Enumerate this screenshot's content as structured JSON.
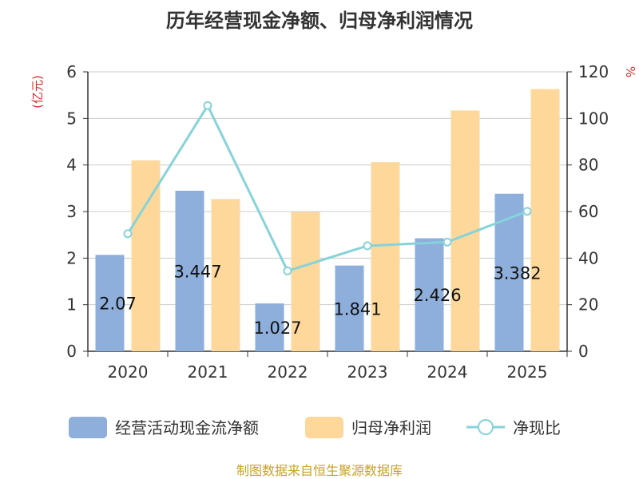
{
  "chart_data": {
    "type": "bar",
    "title": "历年经营现金净额、归母净利润情况",
    "source": "制图数据来自恒生聚源数据库",
    "categories": [
      "2020",
      "2021",
      "2022",
      "2023",
      "2024",
      "2025"
    ],
    "left_axis": {
      "unit": "(亿元)",
      "ylim": [
        0,
        6
      ],
      "ticks": [
        "0",
        "1",
        "2",
        "3",
        "4",
        "5",
        "6"
      ]
    },
    "right_axis": {
      "unit": "%",
      "ylim": [
        0,
        120
      ],
      "ticks": [
        "0",
        "20",
        "40",
        "60",
        "80",
        "100",
        "120"
      ]
    },
    "grid": true,
    "legend_position": "bottom",
    "series": [
      {
        "name": "经营活动现金流净额",
        "type": "bar",
        "axis": "left",
        "color": "#8eaedb",
        "values": [
          2.07,
          3.447,
          1.027,
          1.841,
          2.426,
          3.382
        ],
        "labels": [
          "2.07",
          "3.447",
          "1.027",
          "1.841",
          "2.426",
          "3.382"
        ]
      },
      {
        "name": "归母净利润",
        "type": "bar",
        "axis": "left",
        "color": "#fdd89a",
        "values": [
          4.1,
          3.27,
          2.99,
          4.06,
          5.17,
          5.63
        ]
      },
      {
        "name": "净现比",
        "type": "line",
        "axis": "right",
        "color": "#86d3d9",
        "values": [
          50.5,
          105.5,
          34.5,
          45.3,
          46.9,
          60.1
        ]
      }
    ]
  }
}
